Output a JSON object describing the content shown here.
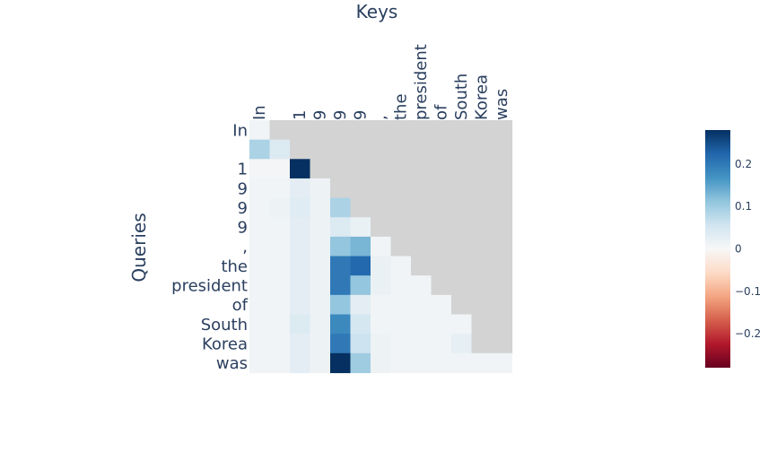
{
  "chart_data": {
    "type": "heatmap",
    "title": "",
    "xlabel": "Keys",
    "ylabel": "Queries",
    "x_tokens": [
      "In",
      " ",
      "1",
      "9",
      "9",
      "9",
      ",",
      "the",
      "president",
      "of",
      "South",
      "Korea",
      "was"
    ],
    "y_tokens": [
      "In",
      " ",
      "1",
      "9",
      "9",
      "9",
      ",",
      "the",
      "president",
      "of",
      "South",
      "Korea",
      "was"
    ],
    "z": [
      [
        0.01
      ],
      [
        0.09,
        0.04
      ],
      [
        0.005,
        0.005,
        0.28
      ],
      [
        0.01,
        0.01,
        0.03,
        0.015
      ],
      [
        0.01,
        0.015,
        0.035,
        0.015,
        0.09
      ],
      [
        0.01,
        0.01,
        0.03,
        0.015,
        0.04,
        0.02
      ],
      [
        0.01,
        0.01,
        0.03,
        0.015,
        0.11,
        0.13,
        0.01
      ],
      [
        0.01,
        0.01,
        0.03,
        0.015,
        0.2,
        0.22,
        0.02,
        0.01
      ],
      [
        0.01,
        0.01,
        0.03,
        0.015,
        0.2,
        0.11,
        0.02,
        0.01,
        0.01
      ],
      [
        0.01,
        0.01,
        0.03,
        0.015,
        0.11,
        0.03,
        0.01,
        0.01,
        0.01,
        0.01
      ],
      [
        0.01,
        0.01,
        0.04,
        0.015,
        0.18,
        0.05,
        0.01,
        0.01,
        0.01,
        0.01,
        0.01
      ],
      [
        0.01,
        0.01,
        0.03,
        0.015,
        0.2,
        0.06,
        0.015,
        0.01,
        0.01,
        0.01,
        0.025
      ],
      [
        0.01,
        0.01,
        0.03,
        0.015,
        0.28,
        0.1,
        0.015,
        0.01,
        0.01,
        0.01,
        0.01,
        0.01,
        0.01
      ]
    ],
    "masked_color": "#d3d3d3",
    "zmin": -0.28,
    "zmax": 0.28,
    "colorscale": "RdBu",
    "colorbar": {
      "ticks": [
        0.2,
        0.1,
        0,
        -0.1,
        -0.2
      ],
      "tick_labels": [
        "0.2",
        "0.1",
        "0",
        "−0.1",
        "−0.2"
      ]
    },
    "grid": false,
    "legend": "colorbar-right"
  }
}
